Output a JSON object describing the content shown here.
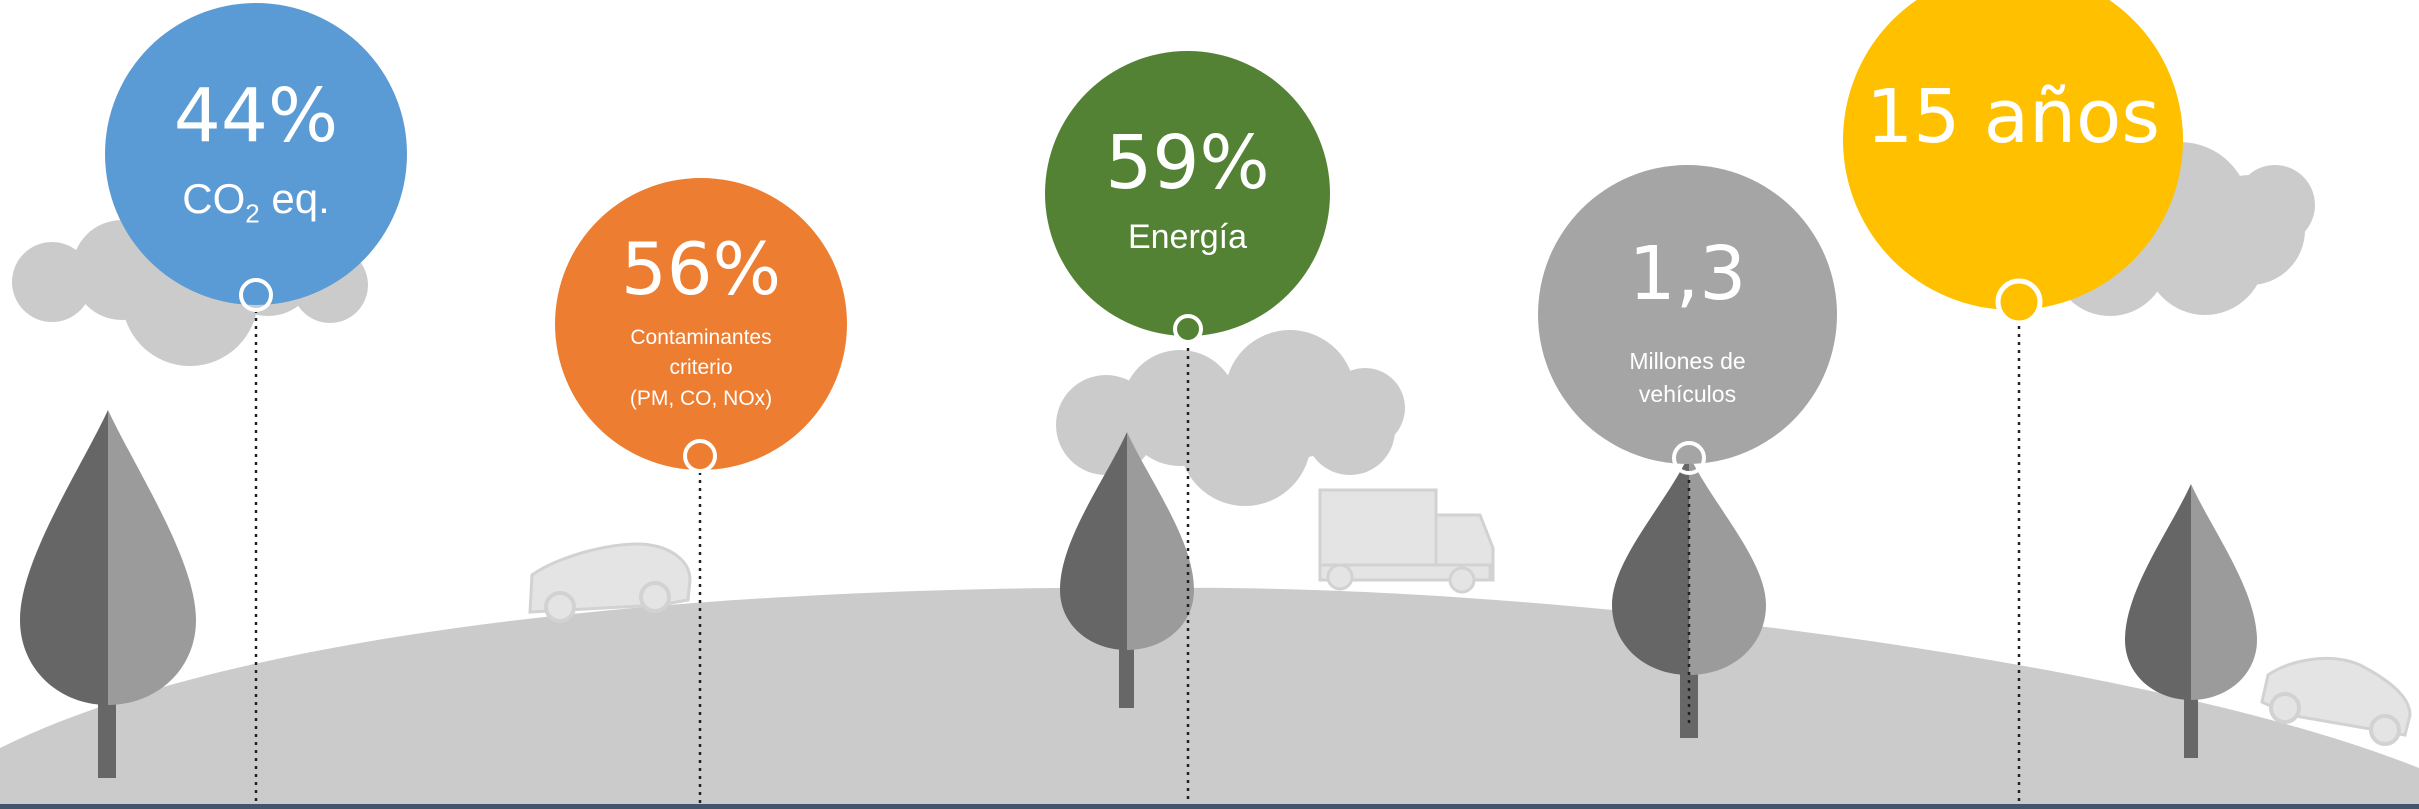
{
  "colors": {
    "blue": "#5b9bd5",
    "orange": "#ed7d31",
    "green": "#548235",
    "gray": "#a5a5a5",
    "yellow": "#ffc000",
    "ground": "#cbcbcb",
    "cloud": "#cbcbcb",
    "tree_dark": "#666666",
    "tree_light": "#9b9b9b",
    "trunk": "#676767",
    "bottom_bar": "#44546a"
  },
  "stats": [
    {
      "value": "44%",
      "label_prefix": "CO",
      "label_sub": "2",
      "label_suffix": " eq."
    },
    {
      "value": "56%",
      "label_line1": "Contaminantes",
      "label_line2": "criterio",
      "label_line3": "(PM, CO, NOx)"
    },
    {
      "value": "59%",
      "label": "Energía"
    },
    {
      "value": "1,3",
      "label_line1": "Millones de",
      "label_line2": "vehículos"
    },
    {
      "value": "15 años"
    }
  ],
  "icons": [
    "cloud-icon",
    "tree-icon",
    "car-icon",
    "truck-icon",
    "pin-icon"
  ]
}
